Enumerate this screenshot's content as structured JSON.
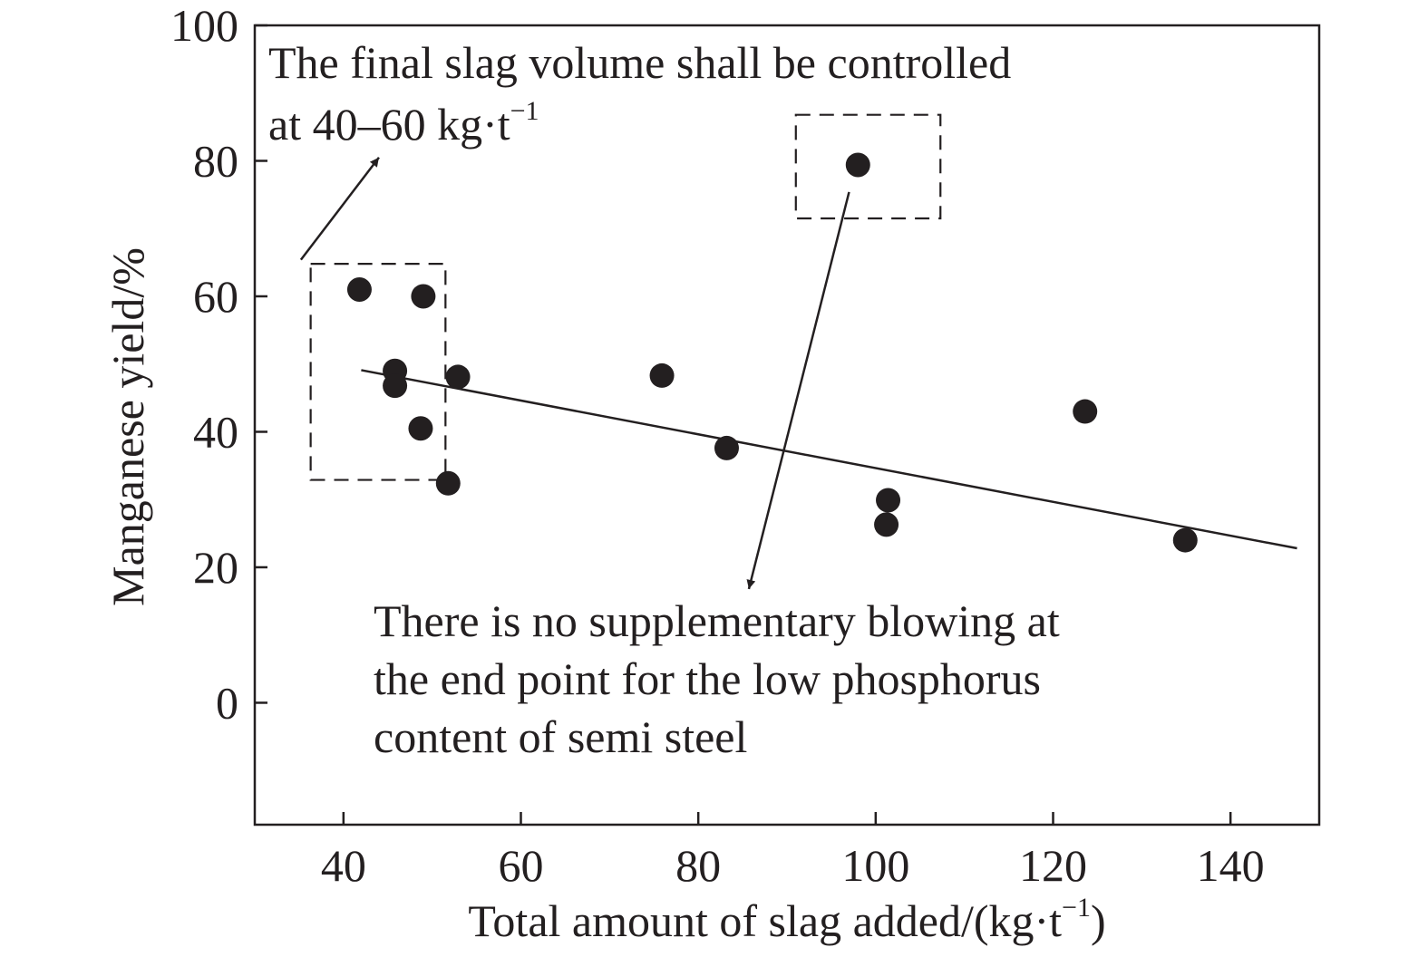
{
  "chart_data": {
    "type": "scatter",
    "xlabel": {
      "main": "Total amount of slag added/(kg·t",
      "sup": "−1",
      "tail": ")"
    },
    "ylabel": "Manganese yield/%",
    "xlim": [
      30,
      150
    ],
    "ylim": [
      -18,
      100
    ],
    "x_ticks": [
      40,
      60,
      80,
      100,
      120,
      140
    ],
    "y_ticks": [
      0,
      20,
      40,
      60,
      80,
      100
    ],
    "grid": false,
    "marker_color": "#231f20",
    "points": [
      {
        "x": 41.8,
        "y": 61.0
      },
      {
        "x": 49.0,
        "y": 60.0
      },
      {
        "x": 45.8,
        "y": 49.0
      },
      {
        "x": 45.8,
        "y": 46.8
      },
      {
        "x": 52.9,
        "y": 48.1
      },
      {
        "x": 48.7,
        "y": 40.5
      },
      {
        "x": 51.8,
        "y": 32.4
      },
      {
        "x": 75.9,
        "y": 48.3
      },
      {
        "x": 83.2,
        "y": 37.6
      },
      {
        "x": 98.0,
        "y": 79.4
      },
      {
        "x": 101.4,
        "y": 29.9
      },
      {
        "x": 101.2,
        "y": 26.3
      },
      {
        "x": 123.6,
        "y": 43.0
      },
      {
        "x": 134.9,
        "y": 24.0
      }
    ],
    "trendline": {
      "x": [
        42.0,
        147.5
      ],
      "y": [
        49.1,
        22.8
      ]
    },
    "regions": [
      {
        "x": [
          36.3,
          51.5
        ],
        "y": [
          32.9,
          64.8
        ]
      },
      {
        "x": [
          91.0,
          107.3
        ],
        "y": [
          71.5,
          86.8
        ]
      }
    ],
    "annotations": [
      {
        "lines": [
          {
            "text": "The final slag volume shall be controlled"
          },
          {
            "text": "at 40–60 kg·t",
            "sup": "−1"
          }
        ],
        "arrow": {
          "from": [
            35.2,
            65.4
          ],
          "to": [
            44.0,
            80.5
          ]
        }
      },
      {
        "lines": [
          {
            "text": "There is no supplementary blowing at"
          },
          {
            "text": "the end point for the low phosphorus"
          },
          {
            "text": "content of semi steel"
          }
        ],
        "arrow": {
          "from": [
            97.0,
            75.4
          ],
          "to": [
            85.7,
            16.8
          ]
        }
      }
    ]
  }
}
